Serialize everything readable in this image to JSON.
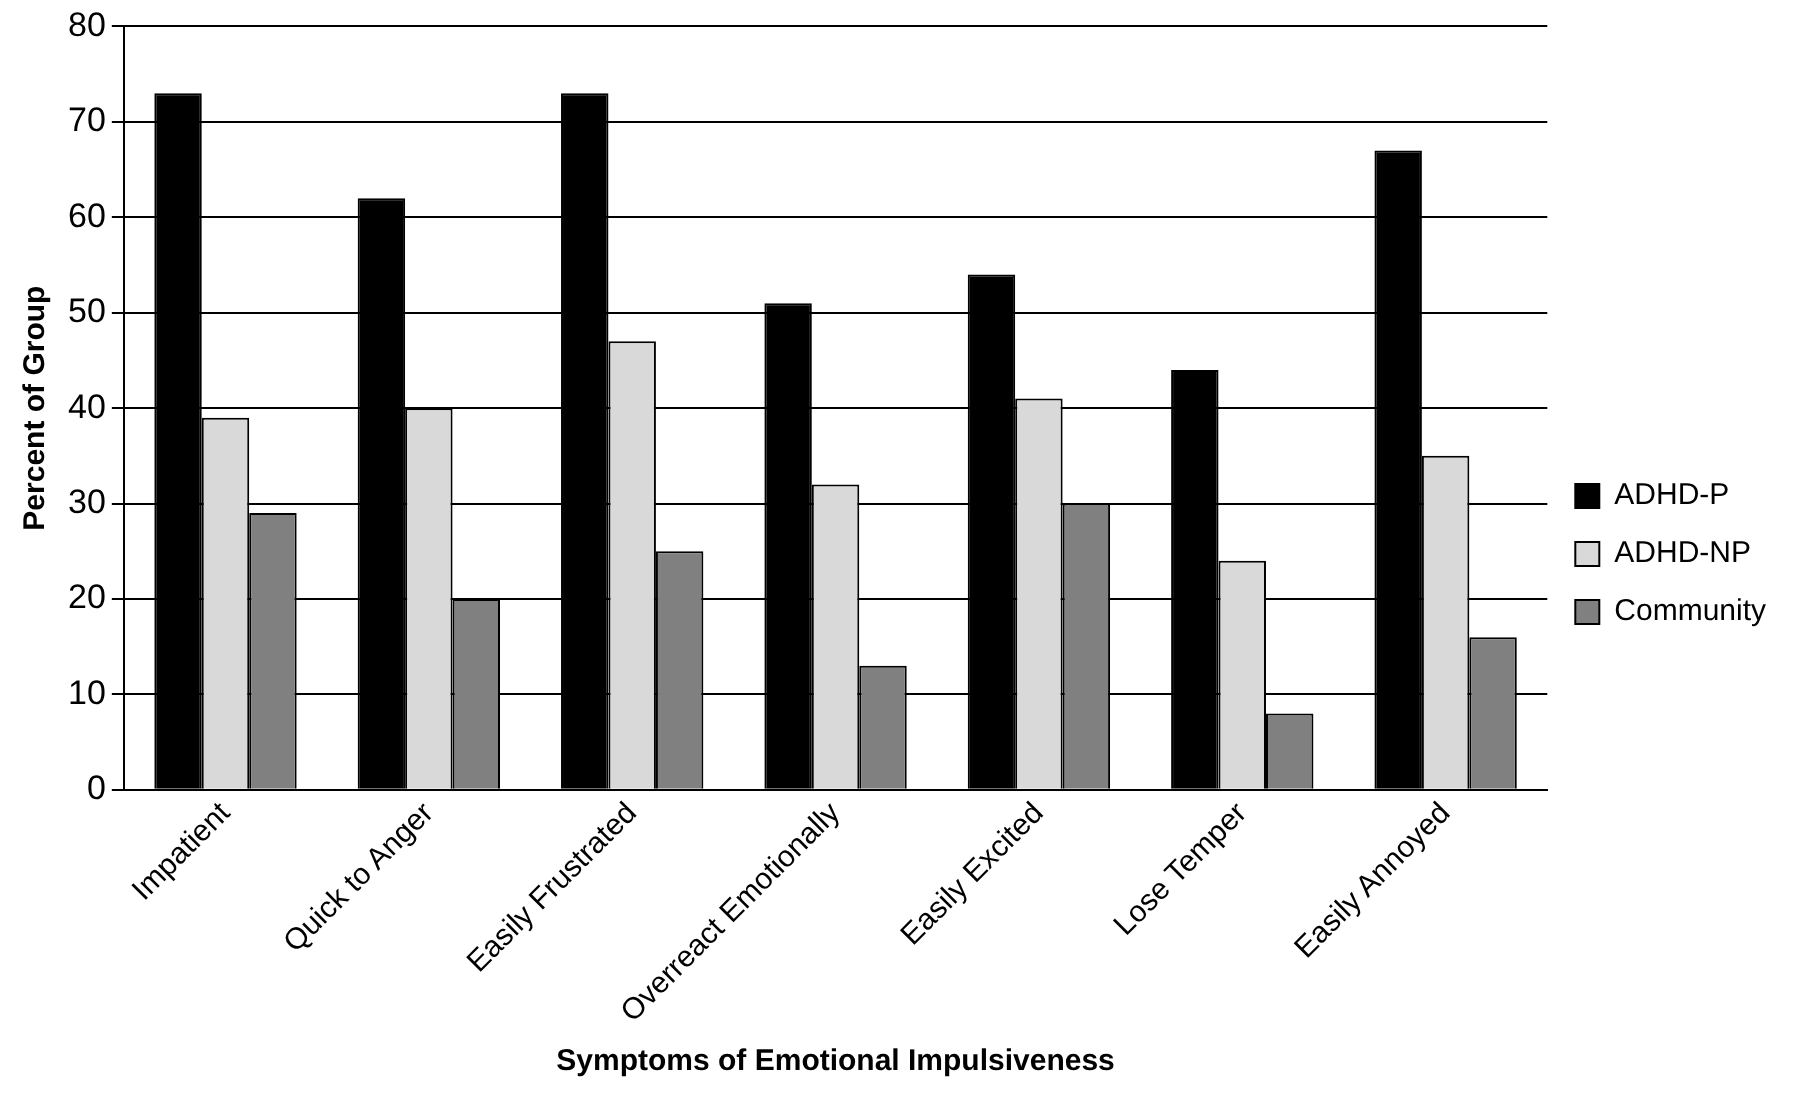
{
  "chart_data": {
    "type": "bar",
    "xlabel": "Symptoms of Emotional Impulsiveness",
    "ylabel": "Percent of Group",
    "categories": [
      "Impatient",
      "Quick to Anger",
      "Easily Frustrated",
      "Overreact Emotionally",
      "Easily Excited",
      "Lose Temper",
      "Easily Annoyed"
    ],
    "series": [
      {
        "name": "ADHD-P",
        "color": "#000000",
        "values": [
          73,
          62,
          73,
          51,
          54,
          44,
          67
        ]
      },
      {
        "name": "ADHD-NP",
        "color": "#d9d9d9",
        "values": [
          39,
          40,
          47,
          32,
          41,
          24,
          35
        ]
      },
      {
        "name": "Community",
        "color": "#808080",
        "values": [
          29,
          20,
          25,
          13,
          30,
          8,
          16
        ]
      }
    ],
    "ylim": [
      0,
      80
    ],
    "yticks": [
      0,
      10,
      20,
      30,
      40,
      50,
      60,
      70,
      80
    ],
    "grid": "y",
    "legend": "right"
  }
}
